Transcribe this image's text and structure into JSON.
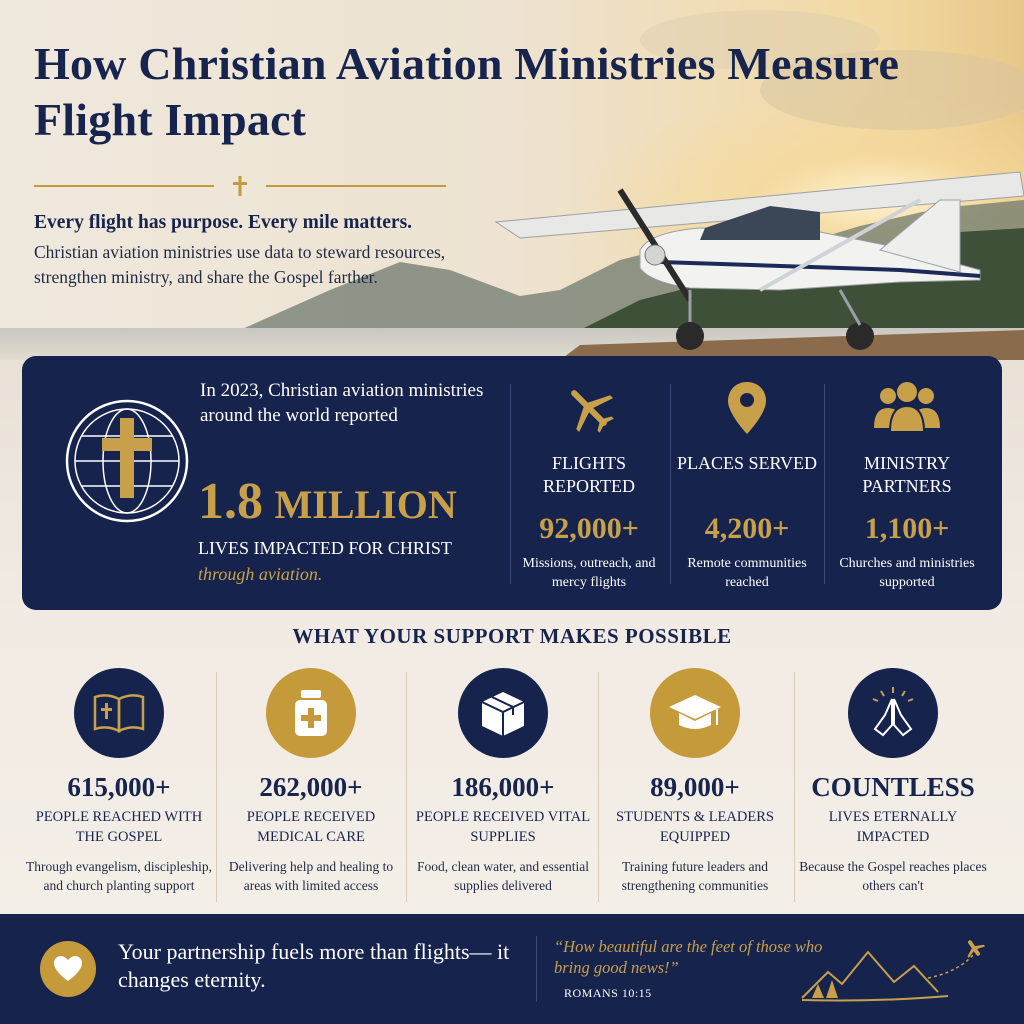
{
  "header": {
    "title": "How Christian Aviation Ministries Measure Flight Impact",
    "tagline": "Every flight has purpose. Every mile matters.",
    "intro": "Christian aviation ministries use data to steward resources, strengthen ministry, and share the Gospel farther."
  },
  "highlight": {
    "lead": "In 2023, Christian aviation ministries around the world reported",
    "big_number": "1.8",
    "big_unit": "MILLION",
    "lives_label": "LIVES IMPACTED FOR CHRIST",
    "through": "through aviation."
  },
  "stats": [
    {
      "icon": "airplane-icon",
      "label": "FLIGHTS REPORTED",
      "value": "92,000+",
      "desc": "Missions, outreach, and mercy flights"
    },
    {
      "icon": "map-pin-icon",
      "label": "PLACES SERVED",
      "value": "4,200+",
      "desc": "Remote communities reached"
    },
    {
      "icon": "people-icon",
      "label": "MINISTRY PARTNERS",
      "value": "1,100+",
      "desc": "Churches and ministries supported"
    }
  ],
  "support": {
    "title": "WHAT YOUR SUPPORT MAKES POSSIBLE",
    "items": [
      {
        "icon": "bible-icon",
        "value": "615,000+",
        "label": "PEOPLE REACHED WITH THE GOSPEL",
        "desc": "Through evangelism, discipleship, and church planting support"
      },
      {
        "icon": "medicine-bottle-icon",
        "value": "262,000+",
        "label": "PEOPLE RECEIVED MEDICAL CARE",
        "desc": "Delivering help and healing to areas with limited access"
      },
      {
        "icon": "box-icon",
        "value": "186,000+",
        "label": "PEOPLE RECEIVED VITAL SUPPLIES",
        "desc": "Food, clean water, and essential supplies delivered"
      },
      {
        "icon": "graduation-cap-icon",
        "value": "89,000+",
        "label": "STUDENTS & LEADERS EQUIPPED",
        "desc": "Training future leaders and strengthening communities"
      },
      {
        "icon": "praying-hands-icon",
        "value": "COUNTLESS",
        "label": "LIVES ETERNALLY IMPACTED",
        "desc": "Because the Gospel reaches places others can't"
      }
    ]
  },
  "footer": {
    "text": "Your partnership fuels more than flights— it changes eternity.",
    "quote": "“How beautiful are the feet of those who bring good news!”",
    "reference": "ROMANS 10:15"
  },
  "colors": {
    "navy": "#15234d",
    "gold": "#c49a3a",
    "cream": "#efe7dc"
  }
}
